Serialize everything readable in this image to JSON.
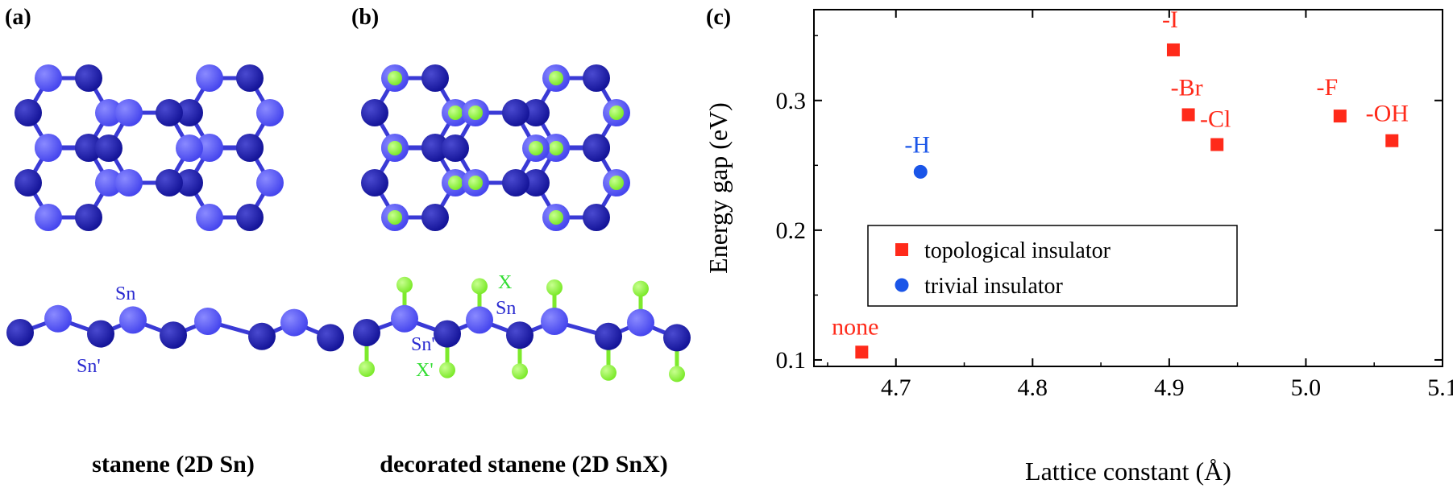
{
  "panel_a": {
    "label": "(a)",
    "caption": "stanene (2D Sn)",
    "sn_label": "Sn",
    "sn_prime_label": "Sn'"
  },
  "panel_b": {
    "label": "(b)",
    "caption": "decorated stanene (2D SnX)",
    "x_label": "X",
    "sn_label": "Sn",
    "sn_prime_label": "Sn'",
    "x_prime_label": "X'"
  },
  "panel_c": {
    "label": "(c)"
  },
  "colors": {
    "sn_upper": "#4747ee",
    "sn_lower": "#15159a",
    "bond": "#3a3ad6",
    "decorator": "#7dea2c",
    "topological": "#ff2a1a",
    "trivial": "#1a55e8"
  },
  "chart_data": {
    "type": "scatter",
    "xlabel": "Lattice constant (Å)",
    "ylabel": "Energy gap (eV)",
    "xlim": [
      4.64,
      5.1
    ],
    "ylim": [
      0.095,
      0.37
    ],
    "xticks": [
      "4.7",
      "4.8",
      "4.9",
      "5.0",
      "5.1"
    ],
    "yticks": [
      "0.1",
      "0.2",
      "0.3"
    ],
    "legend_position": "lower-right",
    "series": [
      {
        "name": "topological insulator",
        "marker": "square",
        "points": [
          {
            "label": "-I",
            "x": 4.903,
            "y": 0.339
          },
          {
            "label": "-Br",
            "x": 4.914,
            "y": 0.289
          },
          {
            "label": "-Cl",
            "x": 4.935,
            "y": 0.266
          },
          {
            "label": "-F",
            "x": 5.025,
            "y": 0.288
          },
          {
            "label": "-OH",
            "x": 5.063,
            "y": 0.269
          },
          {
            "label": "none",
            "x": 4.675,
            "y": 0.106
          }
        ]
      },
      {
        "name": "trivial insulator",
        "marker": "circle",
        "points": [
          {
            "label": "-H",
            "x": 4.718,
            "y": 0.245
          }
        ]
      }
    ]
  }
}
